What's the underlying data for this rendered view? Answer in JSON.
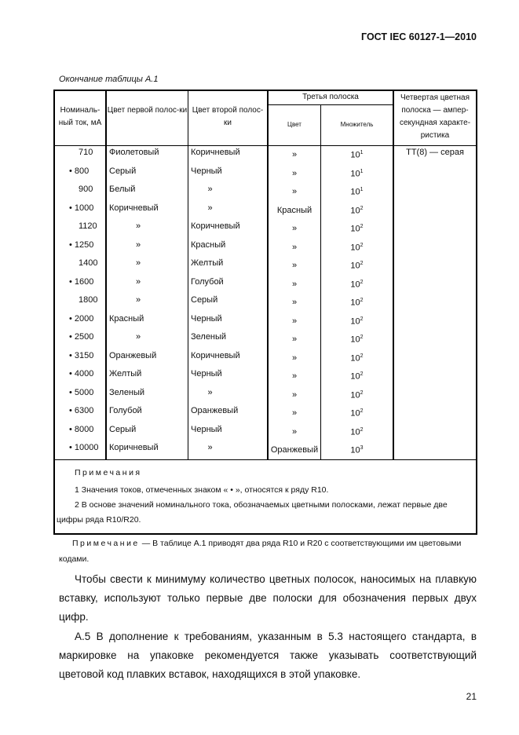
{
  "header": {
    "doc_id": "ГОСТ IEC 60127-1—2010"
  },
  "table": {
    "caption": "Окончание таблицы А.1",
    "headers": {
      "current": "Номиналь-ный ток, мА",
      "first": "Цвет первой полос-ки",
      "second": "Цвет второй полос-ки",
      "third": "Третья полоска",
      "third_color": "Цвет",
      "third_mult": "Множитель",
      "fourth": "Четвертая цветная полоска — ампер-секундная характе-ристика"
    },
    "fourth_value": "ТТ(8) — серая",
    "rows": [
      {
        "current": "710",
        "first": "Фиолетовый",
        "second": "Коричневый",
        "color": "»",
        "exp": "1"
      },
      {
        "current": "• 800",
        "first": "Серый",
        "second": "Черный",
        "color": "»",
        "exp": "1"
      },
      {
        "current": "900",
        "first": "Белый",
        "second": "»",
        "color": "»",
        "exp": "1"
      },
      {
        "current": "• 1000",
        "first": "Коричневый",
        "second": "»",
        "color": "Красный",
        "exp": "2"
      },
      {
        "current": "1120",
        "first": "»",
        "second": "Коричневый",
        "color": "»",
        "exp": "2"
      },
      {
        "current": "• 1250",
        "first": "»",
        "second": "Красный",
        "color": "»",
        "exp": "2"
      },
      {
        "current": "1400",
        "first": "»",
        "second": "Желтый",
        "color": "»",
        "exp": "2"
      },
      {
        "current": "• 1600",
        "first": "»",
        "second": "Голубой",
        "color": "»",
        "exp": "2"
      },
      {
        "current": "1800",
        "first": "»",
        "second": "Серый",
        "color": "»",
        "exp": "2"
      },
      {
        "current": "• 2000",
        "first": "Красный",
        "second": "Черный",
        "color": "»",
        "exp": "2"
      },
      {
        "current": "• 2500",
        "first": "»",
        "second": "Зеленый",
        "color": "»",
        "exp": "2"
      },
      {
        "current": "• 3150",
        "first": "Оранжевый",
        "second": "Коричневый",
        "color": "»",
        "exp": "2"
      },
      {
        "current": "• 4000",
        "first": "Желтый",
        "second": "Черный",
        "color": "»",
        "exp": "2"
      },
      {
        "current": "• 5000",
        "first": "Зеленый",
        "second": "»",
        "color": "»",
        "exp": "2"
      },
      {
        "current": "• 6300",
        "first": "Голубой",
        "second": "Оранжевый",
        "color": "»",
        "exp": "2"
      },
      {
        "current": "• 8000",
        "first": "Серый",
        "second": "Черный",
        "color": "»",
        "exp": "2"
      },
      {
        "current": "• 10000",
        "first": "Коричневый",
        "second": "»",
        "color": "Оранжевый",
        "exp": "3"
      }
    ],
    "mult_base": "10",
    "notes_title": "Примечания",
    "note1": "1  Значения токов, отмеченных знаком « • », относятся к ряду R10.",
    "note2a": "2 В основе значений номинального тока, обозначаемых цветными полосками, лежат первые две",
    "note2b": "цифры ряда R10/R20."
  },
  "after_note": {
    "label": "Примечание",
    "text": "— В таблице А.1 приводят два ряда R10 и R20 с соответствующими им цветовыми",
    "text2": "кодами."
  },
  "paragraphs": [
    "Чтобы свести к минимуму количество цветных полосок, наносимых на плавкую вставку, используют только первые две полоски для обозначения первых двух цифр.",
    "А.5 В дополнение к требованиям, указанным в 5.3 настоящего стандарта, в маркировке на упаковке рекомендуется также указывать соответствующий цветовой код плавких вставок, находящихся в этой упаковке."
  ],
  "page_number": "21"
}
